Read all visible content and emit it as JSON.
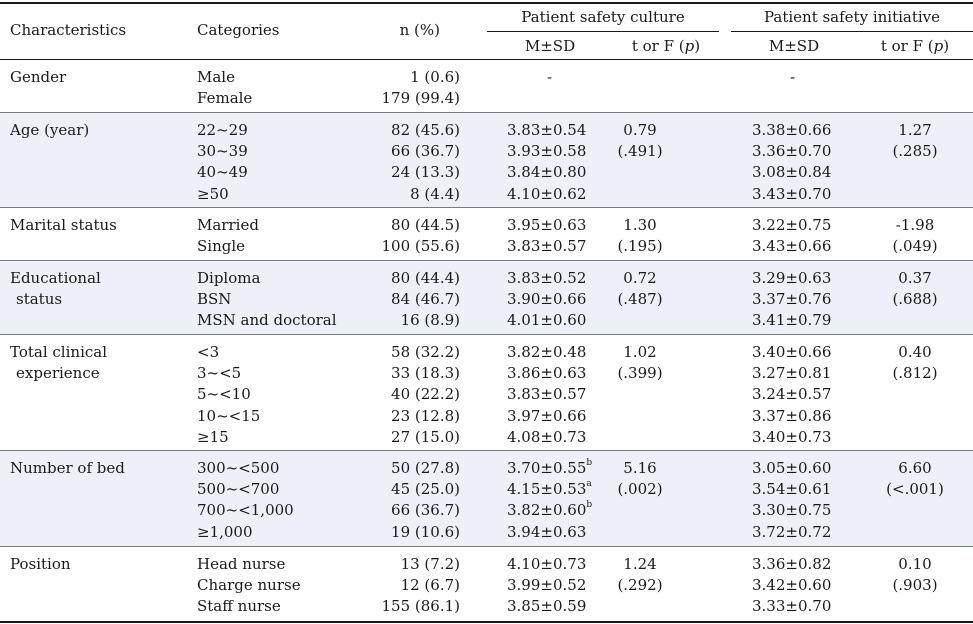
{
  "header": {
    "characteristics": "Characteristics",
    "categories": "Categories",
    "n_pct": "n (%)",
    "group1": "Patient safety culture",
    "group2": "Patient safety initiative",
    "msd": "M±SD",
    "tf_prefix": "t or F (",
    "tf_p": "p",
    "tf_suffix": ")"
  },
  "groups": [
    {
      "label": [
        "Gender"
      ],
      "rows": [
        {
          "cat": "Male",
          "n": "1 (0.6)",
          "psc": "-",
          "psi": "-"
        },
        {
          "cat": "Female",
          "n": "179 (99.4)",
          "psc": "",
          "psi": ""
        }
      ],
      "psc_stat": [
        "",
        ""
      ],
      "psi_stat": [
        "",
        ""
      ]
    },
    {
      "label": [
        "Age (year)"
      ],
      "rows": [
        {
          "cat": "22~29",
          "n": "82 (45.6)",
          "psc": "3.83±0.54",
          "psi": "3.38±0.66"
        },
        {
          "cat": "30~39",
          "n": "66 (36.7)",
          "psc": "3.93±0.58",
          "psi": "3.36±0.70"
        },
        {
          "cat": "40~49",
          "n": "24 (13.3)",
          "psc": "3.84±0.80",
          "psi": "3.08±0.84"
        },
        {
          "cat": "≥50",
          "n": "8 (4.4)",
          "psc": "4.10±0.62",
          "psi": "3.43±0.70"
        }
      ],
      "psc_stat": [
        "0.79",
        "(.491)"
      ],
      "psi_stat": [
        "1.27",
        "(.285)"
      ]
    },
    {
      "label": [
        "Marital status"
      ],
      "rows": [
        {
          "cat": "Married",
          "n": "80 (44.5)",
          "psc": "3.95±0.63",
          "psi": "3.22±0.75"
        },
        {
          "cat": "Single",
          "n": "100 (55.6)",
          "psc": "3.83±0.57",
          "psi": "3.43±0.66"
        }
      ],
      "psc_stat": [
        "1.30",
        "(.195)"
      ],
      "psi_stat": [
        "-1.98",
        "(.049)"
      ]
    },
    {
      "label": [
        "Educational",
        "status"
      ],
      "rows": [
        {
          "cat": "Diploma",
          "n": "80 (44.4)",
          "psc": "3.83±0.52",
          "psi": "3.29±0.63"
        },
        {
          "cat": "BSN",
          "n": "84 (46.7)",
          "psc": "3.90±0.66",
          "psi": "3.37±0.76"
        },
        {
          "cat": "MSN and doctoral",
          "n": "16 (8.9)",
          "psc": "4.01±0.60",
          "psi": "3.41±0.79"
        }
      ],
      "psc_stat": [
        "0.72",
        "(.487)"
      ],
      "psi_stat": [
        "0.37",
        "(.688)"
      ]
    },
    {
      "label": [
        "Total clinical",
        "experience"
      ],
      "rows": [
        {
          "cat": "<3",
          "n": "58 (32.2)",
          "psc": "3.82±0.48",
          "psi": "3.40±0.66"
        },
        {
          "cat": "3~<5",
          "n": "33 (18.3)",
          "psc": "3.86±0.63",
          "psi": "3.27±0.81"
        },
        {
          "cat": "5~<10",
          "n": "40 (22.2)",
          "psc": "3.83±0.57",
          "psi": "3.24±0.57"
        },
        {
          "cat": "10~<15",
          "n": "23 (12.8)",
          "psc": "3.97±0.66",
          "psi": "3.37±0.86"
        },
        {
          "cat": "≥15",
          "n": "27 (15.0)",
          "psc": "4.08±0.73",
          "psi": "3.40±0.73"
        }
      ],
      "psc_stat": [
        "1.02",
        "(.399)"
      ],
      "psi_stat": [
        "0.40",
        "(.812)"
      ]
    },
    {
      "label": [
        "Number of bed"
      ],
      "rows": [
        {
          "cat": "300~<500",
          "n": "50 (27.8)",
          "psc": "3.70±0.55",
          "psc_sup": "b",
          "psi": "3.05±0.60"
        },
        {
          "cat": "500~<700",
          "n": "45 (25.0)",
          "psc": "4.15±0.53",
          "psc_sup": "a",
          "psi": "3.54±0.61"
        },
        {
          "cat": "700~<1,000",
          "n": "66 (36.7)",
          "psc": "3.82±0.60",
          "psc_sup": "b",
          "psi": "3.30±0.75"
        },
        {
          "cat": "≥1,000",
          "n": "19 (10.6)",
          "psc": "3.94±0.63",
          "psi": "3.72±0.72"
        }
      ],
      "psc_stat": [
        "5.16",
        "(.002)"
      ],
      "psi_stat": [
        "6.60",
        "(<.001)"
      ]
    },
    {
      "label": [
        "Position"
      ],
      "rows": [
        {
          "cat": "Head nurse",
          "n": "13 (7.2)",
          "psc": "4.10±0.73",
          "psi": "3.36±0.82"
        },
        {
          "cat": "Charge nurse",
          "n": "12 (6.7)",
          "psc": "3.99±0.52",
          "psi": "3.42±0.60"
        },
        {
          "cat": "Staff nurse",
          "n": "155 (86.1)",
          "psc": "3.85±0.59",
          "psi": "3.33±0.70"
        }
      ],
      "psc_stat": [
        "1.24",
        "(.292)"
      ],
      "psi_stat": [
        "0.10",
        "(.903)"
      ]
    }
  ]
}
